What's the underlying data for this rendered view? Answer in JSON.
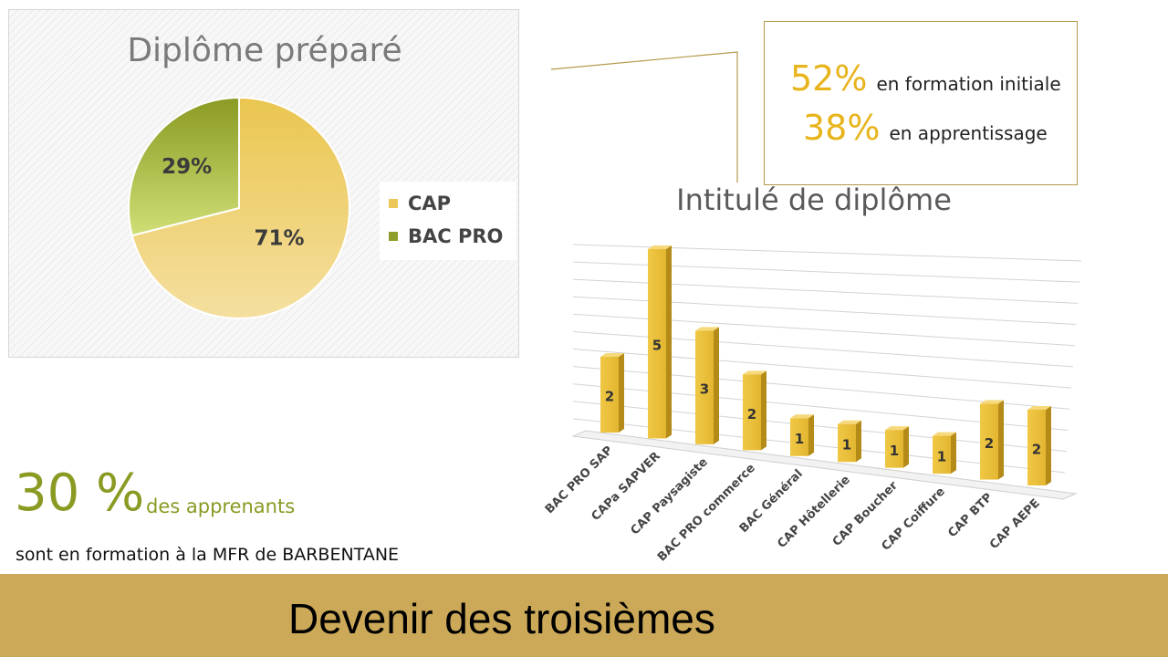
{
  "pie": {
    "title": "Diplôme préparé",
    "legend": [
      {
        "label": "CAP",
        "color": "#ecc85a"
      },
      {
        "label": "BAC PRO",
        "color": "#8f9d2a"
      }
    ]
  },
  "callout": {
    "rows": [
      {
        "pct": "52%",
        "text": "en formation initiale"
      },
      {
        "pct": "38%",
        "text": "en apprentissage"
      }
    ]
  },
  "bar": {
    "title": "Intitulé de diplôme"
  },
  "stat": {
    "big": "30 %",
    "suffix": "des apprenants",
    "line": "sont en formation à la MFR de BARBENTANE"
  },
  "footer": {
    "title": "Devenir des troisièmes"
  },
  "chart_data": [
    {
      "type": "pie",
      "title": "Diplôme préparé",
      "categories": [
        "CAP",
        "BAC PRO"
      ],
      "values": [
        71,
        29
      ],
      "labels": [
        "71%",
        "29%"
      ],
      "colors": [
        "#ecc85a",
        "#9cab32"
      ],
      "legend": "right"
    },
    {
      "type": "bar",
      "title": "Intitulé de diplôme",
      "categories": [
        "BAC PRO SAP",
        "CAPa SAPVER",
        "CAP Paysagiste",
        "BAC PRO commerce",
        "BAC Général",
        "CAP Hôtellerie",
        "CAP Boucher",
        "CAP Coiffure",
        "CAP BTP",
        "CAP AEPE"
      ],
      "values": [
        2,
        5,
        3,
        2,
        1,
        1,
        1,
        1,
        2,
        2
      ],
      "ylim": [
        0,
        5
      ],
      "grid": true,
      "color": "#e9c041"
    }
  ]
}
